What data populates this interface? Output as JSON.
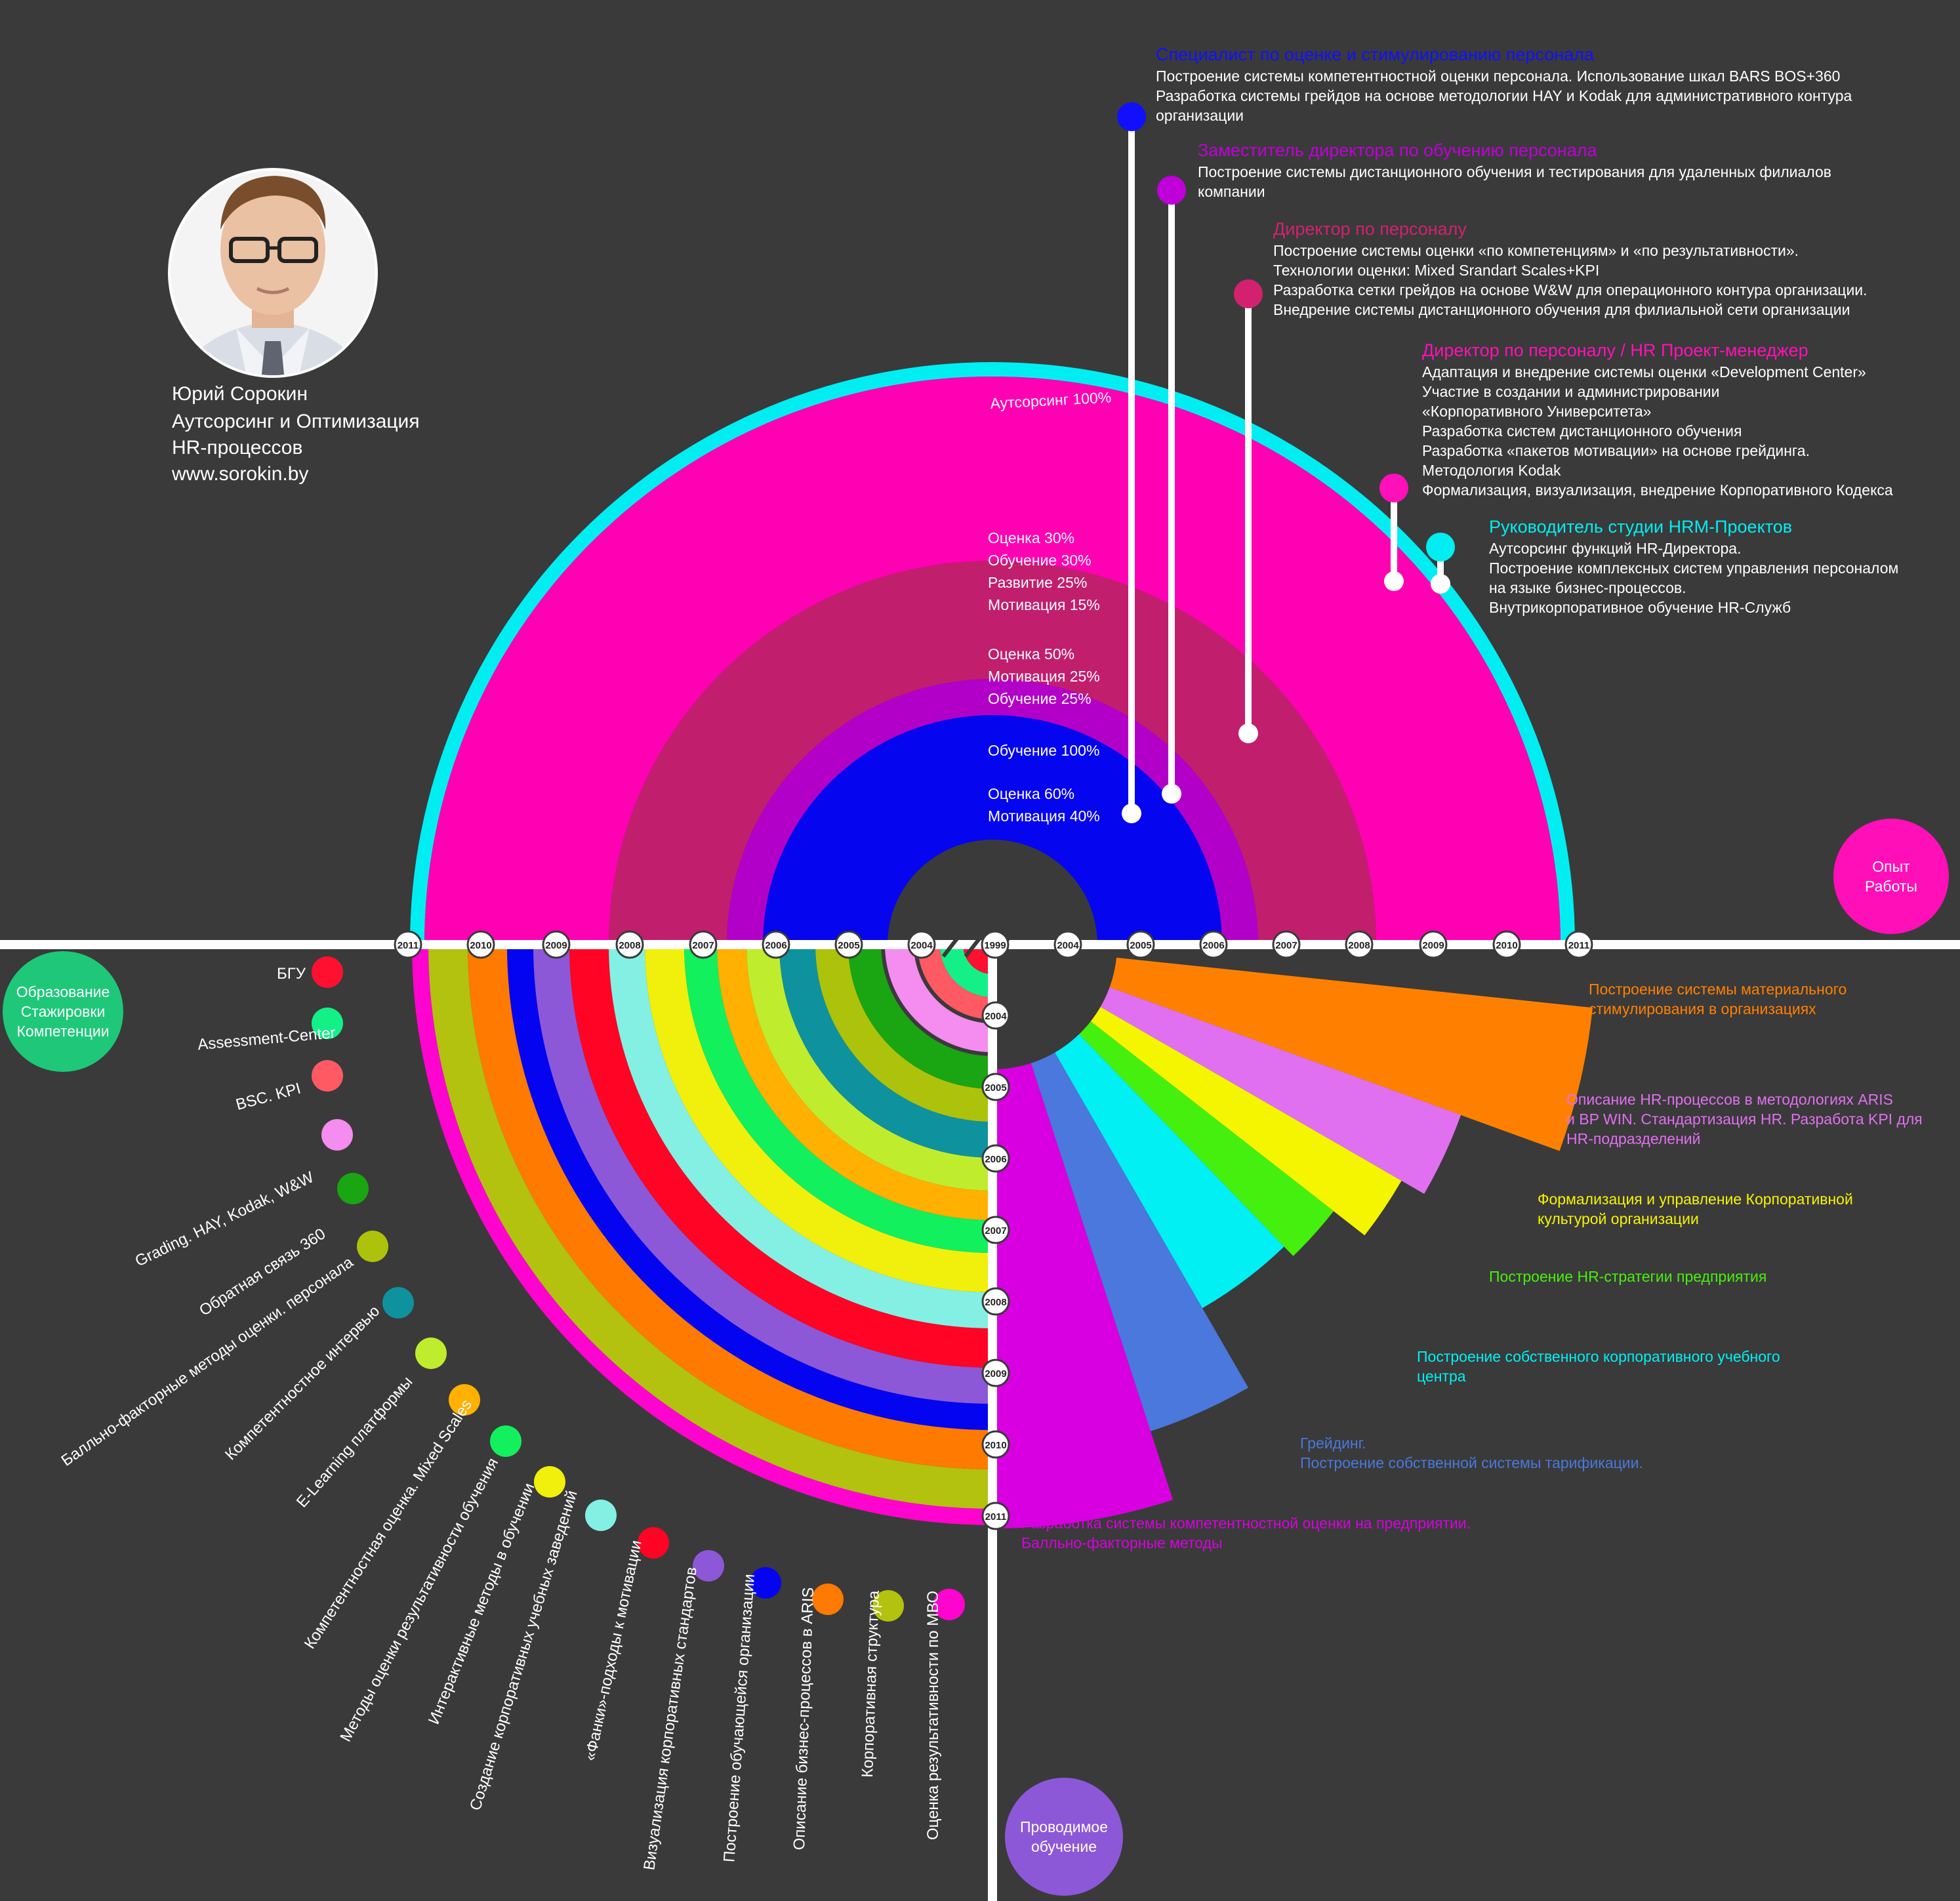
{
  "profile": {
    "name": "Юрий Сорокин",
    "line2": "Аутсорсинг и Оптимизация",
    "line3": "HR-процессов",
    "site": "www.sorokin.by"
  },
  "badges": {
    "work": [
      "Опыт",
      "Работы"
    ],
    "education": [
      "Образование",
      "Стажировки",
      "Компетенции"
    ],
    "training": [
      "Проводимое",
      "обучение"
    ]
  },
  "timeline": {
    "left_years": [
      "2011",
      "2010",
      "2009",
      "2008",
      "2007",
      "2006",
      "2005",
      "2004"
    ],
    "center_year": "1999",
    "right_years": [
      "2004",
      "2005",
      "2006",
      "2007",
      "2008",
      "2009",
      "2010",
      "2011"
    ],
    "vertical_years": [
      "2004",
      "2005",
      "2006",
      "2007",
      "2008",
      "2009",
      "2010",
      "2011"
    ]
  },
  "work_rings": [
    {
      "label": "Аутсорсинг  100%",
      "color": "#00eef2"
    },
    {
      "lines": [
        "Оценка 30%",
        "Обучение 30%",
        "Развитие 25%",
        "Мотивация 15%"
      ],
      "color": "#ff00b3"
    },
    {
      "lines": [
        "Оценка 50%",
        "Мотивация 25%",
        "Обучение 25%"
      ],
      "color": "#c21e6e"
    },
    {
      "lines": [
        "Обучение 100%"
      ],
      "color": "#b300c8"
    },
    {
      "lines": [
        "Оценка 60%",
        "Мотивация 40%"
      ],
      "color": "#0505f0"
    }
  ],
  "positions": [
    {
      "title": "Специалист по оценке и стимулированию персонала",
      "color": "#1010ff",
      "lines": [
        "Построение системы компетентностной оценки персонала. Использование шкал BARS BOS+360",
        "Разработка системы грейдов на основе методологии HAY и Kodak для административного контура",
        "организации"
      ]
    },
    {
      "title": "Заместитель директора по обучению персонала",
      "color": "#c000d8",
      "lines": [
        "Построение системы дистанционного обучения и тестирования для удаленных филиалов",
        "компании"
      ]
    },
    {
      "title": "Директор по персоналу",
      "color": "#d3216f",
      "lines": [
        "Построение системы оценки «по компетенциям» и «по результативности».",
        "Технологии оценки: Mixed Srandart Scales+KPI",
        "Разработка сетки грейдов на основе W&W для операционного контура организации.",
        "Внедрение системы дистанционного обучения для филиальной сети организации"
      ]
    },
    {
      "title": "Директор по персоналу / HR Проект-менеджер",
      "color": "#ff10b8",
      "lines": [
        "Адаптация и внедрение системы оценки «Development Center»",
        "Участие в создании и администрировании",
        "«Корпоративного Университета»",
        "Разработка систем дистанционного обучения",
        "Разработка «пакетов мотивации» на основе грейдинга.",
        "Методология Kodak",
        "Формализация, визуализация, внедрение Корпоративного Кодекса"
      ]
    },
    {
      "title": "Руководитель студии HRM-Проектов",
      "color": "#00eef2",
      "lines": [
        "Аутсорсинг функций HR-Директора.",
        "Построение комплексных систем управления персоналом",
        "на языке бизнес-процессов.",
        "Внутрикорпоративное обучение HR-Служб"
      ]
    }
  ],
  "education": [
    {
      "label": "БГУ",
      "color": "#ff1030"
    },
    {
      "label": "Assessment-Center",
      "color": "#14f088"
    },
    {
      "label": "BSC. KPI",
      "color": "#ff5a64"
    },
    {
      "label": "Grading. HAY, Kodak, W&W",
      "color": "#f58cf0"
    },
    {
      "label": "Обратная связь 360",
      "color": "#1aa512"
    },
    {
      "label": "Балльно-факторные методы оценки. персонала",
      "color": "#adc20a"
    },
    {
      "label": "Компетентностное интервью",
      "color": "#0e929e"
    },
    {
      "label": "E-Learning платформы",
      "color": "#c0ec2e"
    },
    {
      "label": "Компетентностная оценка. Mixed Scales",
      "color": "#ffb000"
    },
    {
      "label": "Методы оценки результативности обучения",
      "color": "#12f05e"
    },
    {
      "label": "Интерактивные методы в обучении",
      "color": "#f0f00c"
    },
    {
      "label": "Создание корпоративных учебных заведений",
      "color": "#84f0e4"
    },
    {
      "label": "«Фанки»-подходы к мотивации",
      "color": "#ff0424"
    },
    {
      "label": "Визуализация корпоративных стандартов",
      "color": "#8c58d8"
    },
    {
      "label": "Построение обучающейся организации",
      "color": "#0404f0"
    },
    {
      "label": "Описание  бизнес-процессов в ARIS",
      "color": "#ff7a00"
    },
    {
      "label": "Корпоративная структура",
      "color": "#b2c20e"
    },
    {
      "label": "Оценка результативности по МВО",
      "color": "#ff04ce"
    }
  ],
  "trainings": [
    {
      "lines": [
        "Построение системы материального",
        "стимулирования в организациях"
      ],
      "color": "#ff8000"
    },
    {
      "lines": [
        "Описание HR-процессов в методологиях ARIS",
        "и BP WIN. Стандартизация HR. Разработа KPI для",
        "HR-подразделений"
      ],
      "color": "#e070f0"
    },
    {
      "lines": [
        "Формализация и управление Корпоративной",
        "культурой организации"
      ],
      "color": "#f5f500"
    },
    {
      "lines": [
        "Построение HR-стратегии предприятия"
      ],
      "color": "#46f00e"
    },
    {
      "lines": [
        "Построение собственного корпоративного учебного",
        "центра"
      ],
      "color": "#00f0f4"
    },
    {
      "lines": [
        "Грейдинг.",
        "Построение собственной системы тарификации."
      ],
      "color": "#4a78dc"
    },
    {
      "lines": [
        "Разработка системы компетентностной оценки на предприятии.",
        "Балльно-факторные методы"
      ],
      "color": "#d800e0"
    }
  ]
}
